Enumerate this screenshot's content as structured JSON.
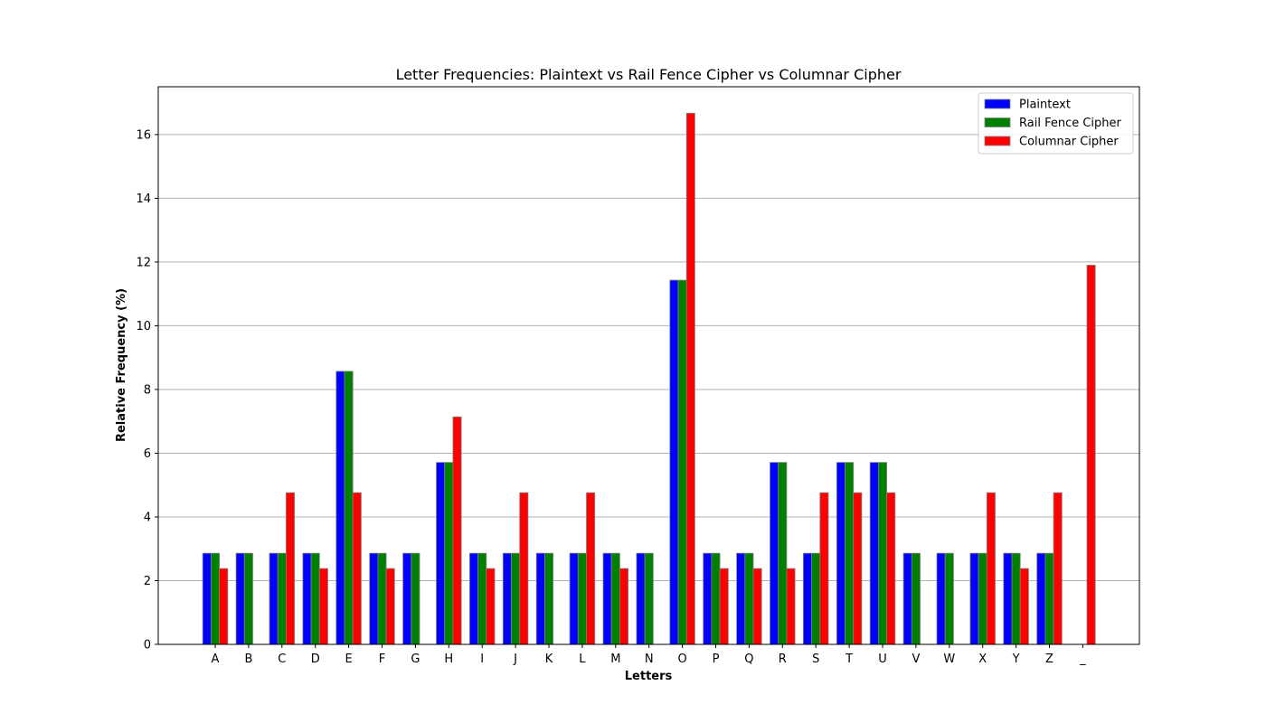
{
  "chart_data": {
    "type": "bar",
    "title": "Letter Frequencies: Plaintext vs Rail Fence Cipher vs Columnar Cipher",
    "xlabel": "Letters",
    "ylabel": "Relative Frequency (%)",
    "ylim": [
      0,
      17.5
    ],
    "yticks": [
      0,
      2,
      4,
      6,
      8,
      10,
      12,
      14,
      16
    ],
    "grid": "y",
    "legend_position": "top-right",
    "categories": [
      "A",
      "B",
      "C",
      "D",
      "E",
      "F",
      "G",
      "H",
      "I",
      "J",
      "K",
      "L",
      "M",
      "N",
      "O",
      "P",
      "Q",
      "R",
      "S",
      "T",
      "U",
      "V",
      "W",
      "X",
      "Y",
      "Z",
      "_"
    ],
    "series": [
      {
        "name": "Plaintext",
        "color": "#0000ff",
        "values": [
          2.86,
          2.86,
          2.86,
          2.86,
          8.57,
          2.86,
          2.86,
          5.71,
          2.86,
          2.86,
          2.86,
          2.86,
          2.86,
          2.86,
          11.43,
          2.86,
          2.86,
          5.71,
          2.86,
          5.71,
          5.71,
          2.86,
          2.86,
          2.86,
          2.86,
          2.86,
          0
        ]
      },
      {
        "name": "Rail Fence Cipher",
        "color": "#008000",
        "values": [
          2.86,
          2.86,
          2.86,
          2.86,
          8.57,
          2.86,
          2.86,
          5.71,
          2.86,
          2.86,
          2.86,
          2.86,
          2.86,
          2.86,
          11.43,
          2.86,
          2.86,
          5.71,
          2.86,
          5.71,
          5.71,
          2.86,
          2.86,
          2.86,
          2.86,
          2.86,
          0
        ]
      },
      {
        "name": "Columnar Cipher",
        "color": "#ff0000",
        "values": [
          2.38,
          0,
          4.76,
          2.38,
          4.76,
          2.38,
          0,
          7.14,
          2.38,
          4.76,
          0,
          4.76,
          2.38,
          0,
          16.67,
          2.38,
          2.38,
          2.38,
          4.76,
          4.76,
          4.76,
          0,
          0,
          4.76,
          2.38,
          4.76,
          11.9
        ]
      }
    ]
  }
}
